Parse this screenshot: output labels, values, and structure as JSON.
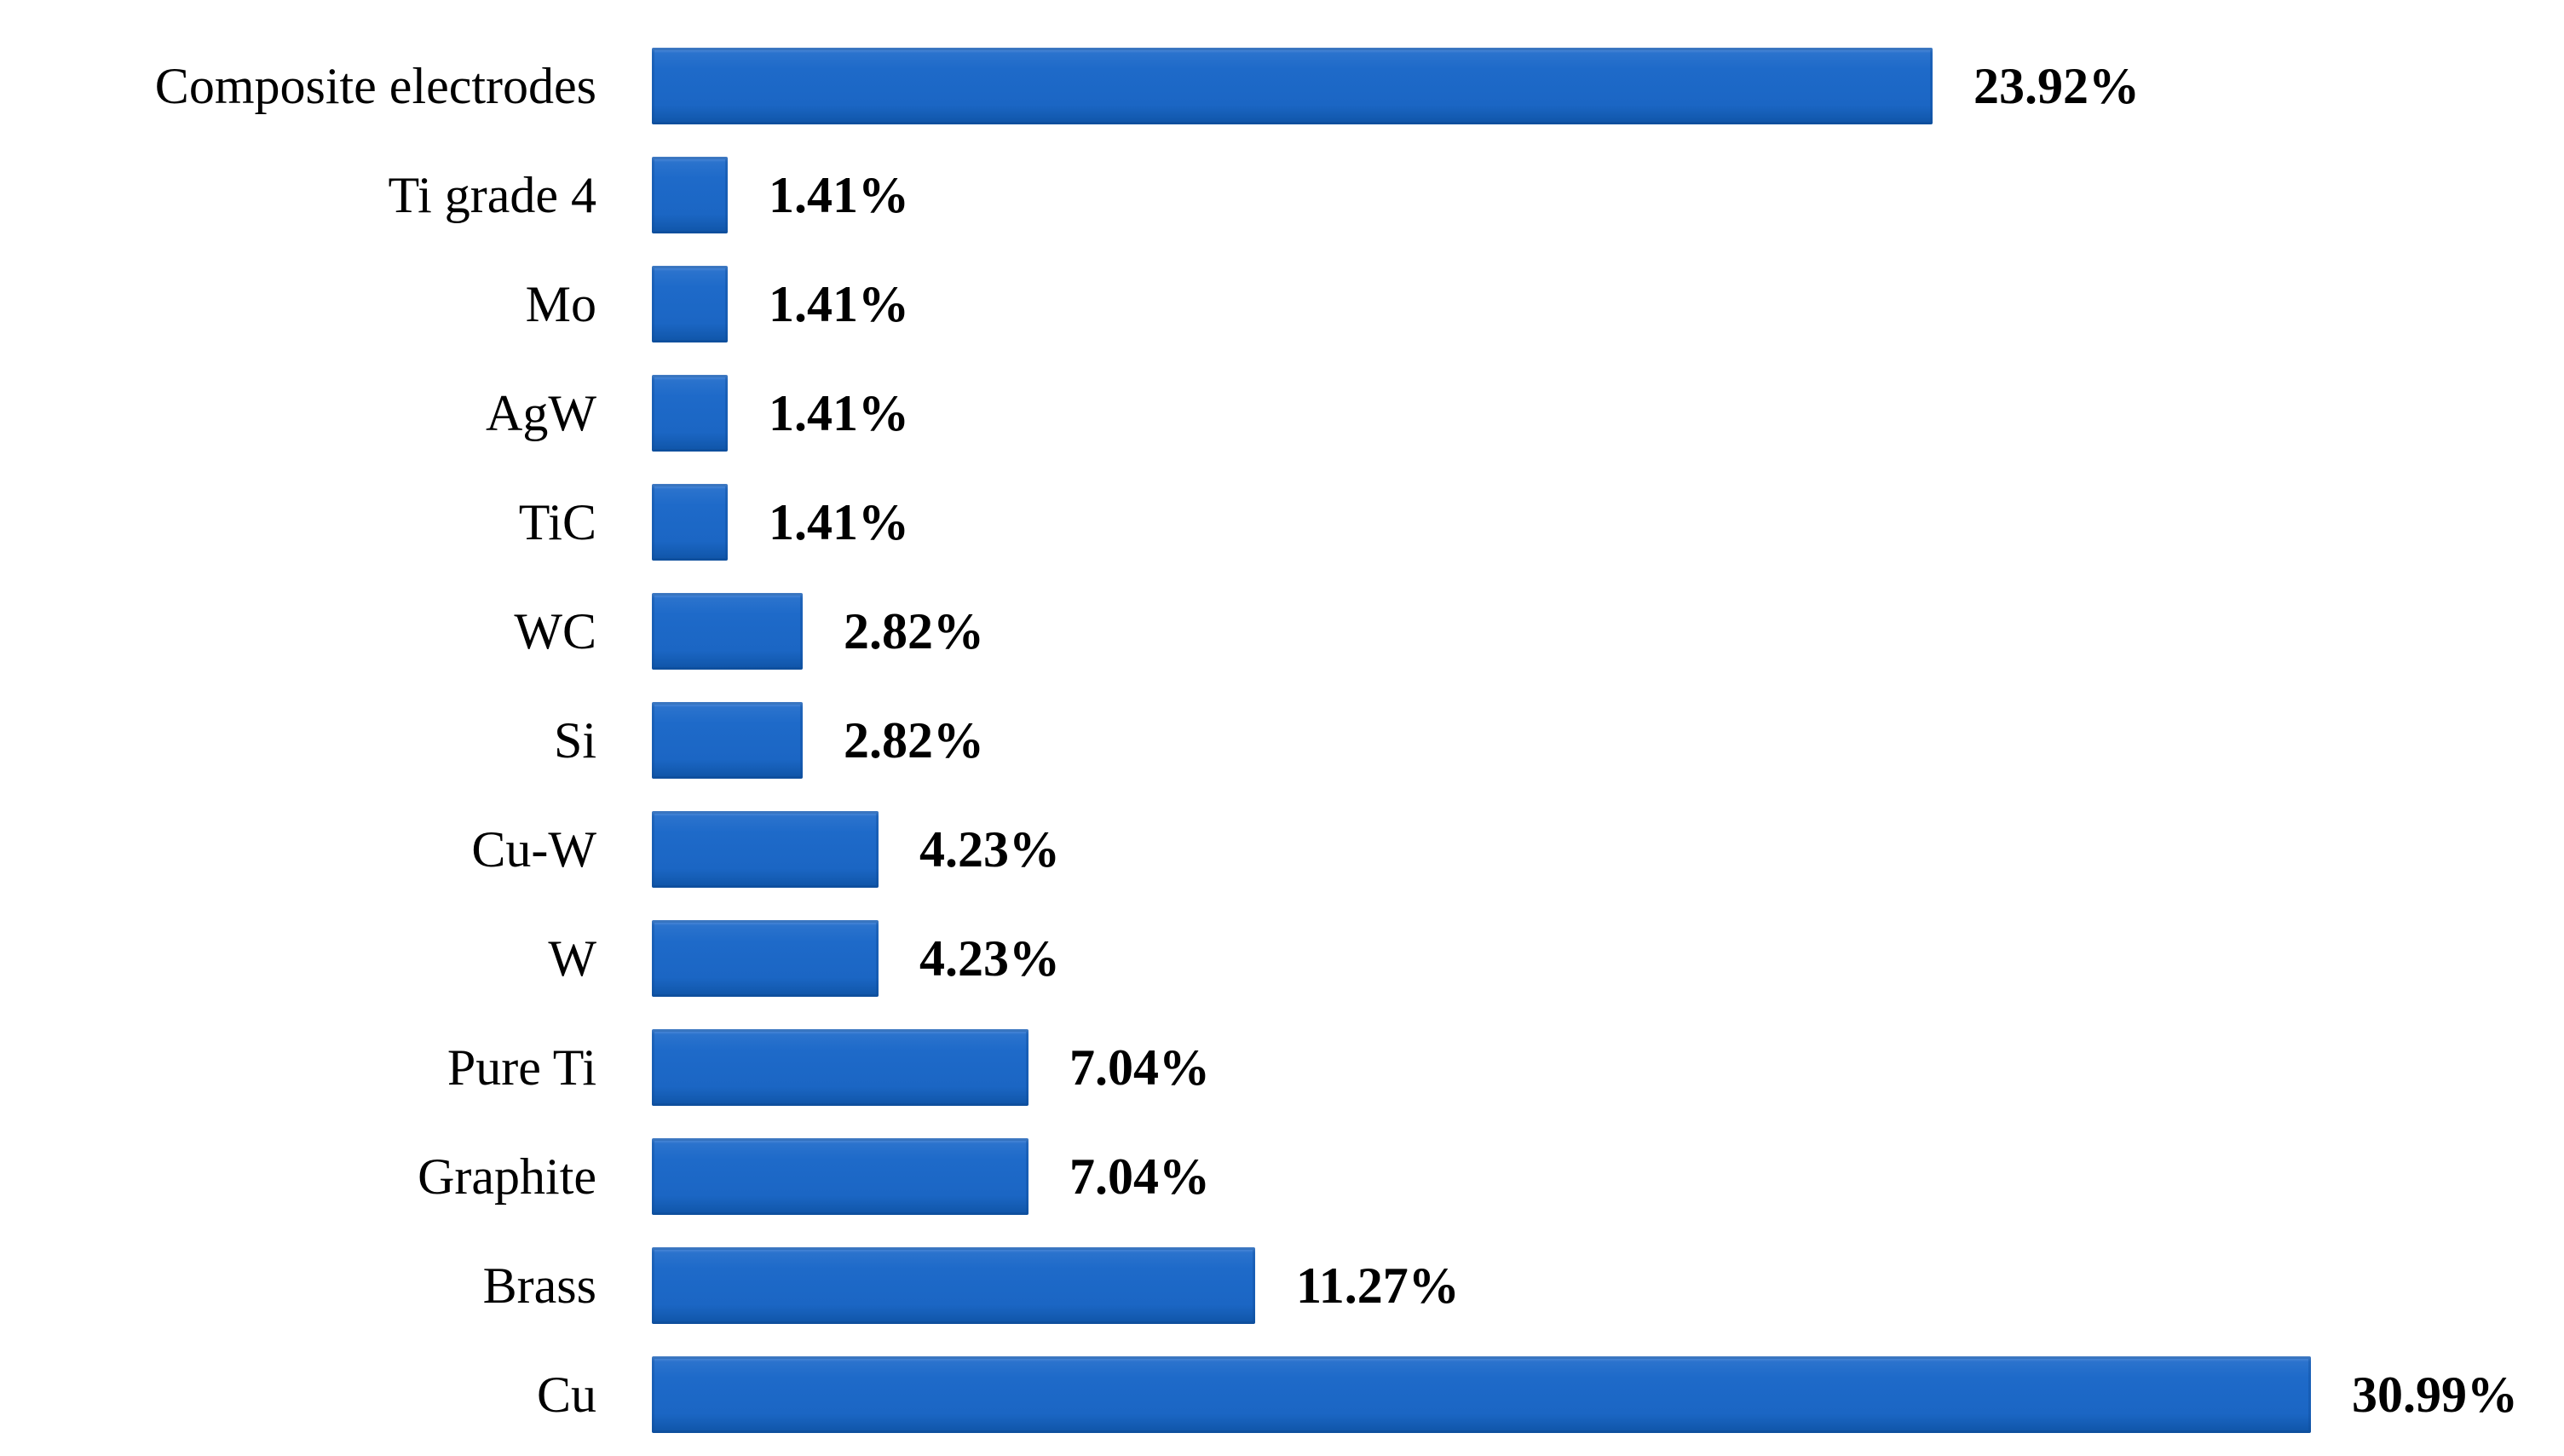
{
  "chart_data": {
    "type": "bar",
    "orientation": "horizontal",
    "title": "",
    "xlabel": "",
    "ylabel": "",
    "categories": [
      "Composite electrodes",
      "Ti grade 4",
      "Mo",
      "AgW",
      "TiC",
      "WC",
      "Si",
      "Cu-W",
      "W",
      "Pure Ti",
      "Graphite",
      "Brass",
      "Cu"
    ],
    "values": [
      23.92,
      1.41,
      1.41,
      1.41,
      1.41,
      2.82,
      2.82,
      4.23,
      4.23,
      7.04,
      7.04,
      11.27,
      30.99
    ],
    "value_labels": [
      "23.92%",
      "1.41%",
      "1.41%",
      "1.41%",
      "1.41%",
      "2.82%",
      "2.82%",
      "4.23%",
      "4.23%",
      "7.04%",
      "7.04%",
      "11.27%",
      "30.99%"
    ],
    "xlim": [
      0,
      31
    ],
    "grid": false,
    "legend": "none",
    "value_label_position": "outside-end",
    "bar_color": "#1b66c4",
    "bar_border_color": "#0f55a8",
    "text_color": "#000000",
    "background_color": "#ffffff"
  }
}
